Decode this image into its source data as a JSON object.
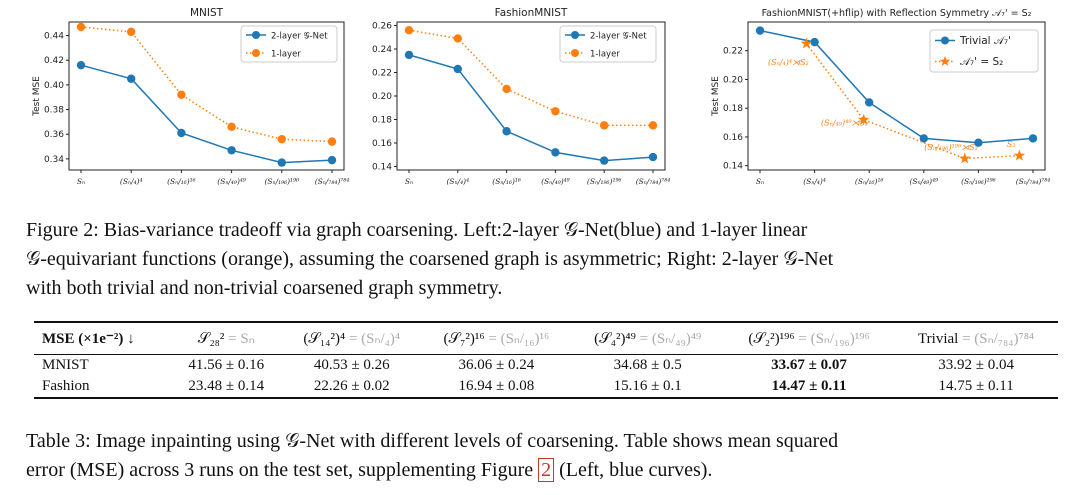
{
  "chart_data": [
    {
      "type": "line",
      "title": "MNIST",
      "ylabel": "Test MSE",
      "categories": [
        "Sₙ",
        "(Sₙ/₄)⁴",
        "(Sₙ/₁₆)¹⁶",
        "(Sₙ/₄₉)⁴⁹",
        "(Sₙ/₁₉₆)¹⁹⁶",
        "(Sₙ/₇₈₄)⁷⁸⁴"
      ],
      "yticks": [
        0.34,
        0.36,
        0.38,
        0.4,
        0.42,
        0.44
      ],
      "ylim": [
        0.331,
        0.451
      ],
      "legend": "top-right",
      "series": [
        {
          "name": "2-layer 𝒢-Net",
          "color": "#1f77b4",
          "style": "solid",
          "values": [
            0.416,
            0.405,
            0.361,
            0.347,
            0.337,
            0.339
          ]
        },
        {
          "name": "1-layer",
          "color": "#ff7f0e",
          "style": "dotted",
          "values": [
            0.447,
            0.443,
            0.392,
            0.366,
            0.356,
            0.354
          ]
        }
      ]
    },
    {
      "type": "line",
      "title": "FashionMNIST",
      "ylabel": "",
      "categories": [
        "Sₙ",
        "(Sₙ/₄)⁴",
        "(Sₙ/₁₆)¹⁶",
        "(Sₙ/₄₉)⁴⁹",
        "(Sₙ/₁₉₆)¹⁹⁶",
        "(Sₙ/₇₈₄)⁷⁸⁴"
      ],
      "yticks": [
        0.14,
        0.16,
        0.18,
        0.2,
        0.22,
        0.24,
        0.26
      ],
      "ylim": [
        0.137,
        0.263
      ],
      "legend": "top-right",
      "series": [
        {
          "name": "2-layer 𝒢-Net",
          "color": "#1f77b4",
          "style": "solid",
          "values": [
            0.235,
            0.223,
            0.17,
            0.152,
            0.145,
            0.148
          ]
        },
        {
          "name": "1-layer",
          "color": "#ff7f0e",
          "style": "dotted",
          "values": [
            0.256,
            0.249,
            0.206,
            0.187,
            0.175,
            0.175
          ]
        }
      ]
    },
    {
      "type": "line",
      "title": "FashionMNIST(+hflip) with Reflection Symmetry 𝒜₇' = S₂",
      "ylabel": "Test MSE",
      "categories": [
        "Sₙ",
        "(Sₙ/₄)⁴",
        "(Sₙ/₁₆)¹⁶",
        "(Sₙ/₄₉)⁴⁹",
        "(Sₙ/₁₉₆)¹⁹⁶",
        "(Sₙ/₇₈₄)⁷⁸⁴"
      ],
      "yticks": [
        0.14,
        0.16,
        0.18,
        0.2,
        0.22
      ],
      "ylim": [
        0.137,
        0.24
      ],
      "legend": "top-right",
      "series": [
        {
          "name": "Trivial 𝒜₇'",
          "color": "#1f77b4",
          "style": "solid",
          "marker": "circle",
          "x": [
            0,
            1,
            2,
            3,
            4,
            5
          ],
          "values": [
            0.234,
            0.226,
            0.184,
            0.159,
            0.156,
            0.159
          ]
        },
        {
          "name": "𝒜₇' = S₂",
          "color": "#ff7f0e",
          "style": "dotted",
          "marker": "star",
          "x": [
            0.85,
            1.9,
            3.75,
            4.75
          ],
          "values": [
            0.225,
            0.172,
            0.145,
            0.147
          ]
        }
      ],
      "annotations": [
        "(Sₙ/₄)⁴⋊S₂",
        "(Sₙ/₄₉)⁴⁹⋊S₂",
        "(Sₙ/₁₉₆)¹⁹⁶⋊S₂",
        "S₂"
      ]
    }
  ],
  "figure_caption": {
    "p1": "Figure 2: Bias-variance tradeoff via graph coarsening. Left:2-layer 𝒢-Net(blue) and 1-layer linear",
    "p2": "𝒢-equivariant functions (orange), assuming the coarsened graph is asymmetric; Right: 2-layer 𝒢-Net",
    "p3": "with both trivial and non-trivial coarsened graph symmetry."
  },
  "table": {
    "header": [
      {
        "main": "MSE (×1e⁻²) ↓",
        "grey": ""
      },
      {
        "main": "𝒮₂₈²",
        "grey": " = Sₙ"
      },
      {
        "main": "(𝒮₁₄²)⁴",
        "grey": " = (Sₙ/₄)⁴"
      },
      {
        "main": "(𝒮₇²)¹⁶",
        "grey": " = (Sₙ/₁₆)¹⁶"
      },
      {
        "main": "(𝒮₄²)⁴⁹",
        "grey": " = (Sₙ/₄₉)⁴⁹"
      },
      {
        "main": "(𝒮₂²)¹⁹⁶",
        "grey": " = (Sₙ/₁₉₆)¹⁹⁶"
      },
      {
        "main": "Trivial",
        "grey": " = (Sₙ/₇₈₄)⁷⁸⁴"
      }
    ],
    "rows": [
      {
        "label": "MNIST",
        "cells": [
          "41.56 ± 0.16",
          "40.53 ± 0.26",
          "36.06 ± 0.24",
          "34.68 ± 0.5",
          "33.67 ± 0.07",
          "33.92 ± 0.04"
        ]
      },
      {
        "label": "Fashion",
        "cells": [
          "23.48 ± 0.14",
          "22.26 ± 0.02",
          "16.94 ± 0.08",
          "15.16 ± 0.1",
          "14.47 ± 0.11",
          "14.75 ± 0.11"
        ]
      }
    ]
  },
  "table_caption": {
    "p1": "Table 3: Image inpainting using 𝒢-Net with different levels of coarsening. Table shows mean squared",
    "p2a": "error (MSE) across 3 runs on the test set, supplementing Figure ",
    "ref": "2",
    "p2b": " (Left, blue curves)."
  },
  "colors": {
    "blue": "#1f77b4",
    "orange": "#ff7f0e",
    "grey": "#aaaaaa"
  }
}
